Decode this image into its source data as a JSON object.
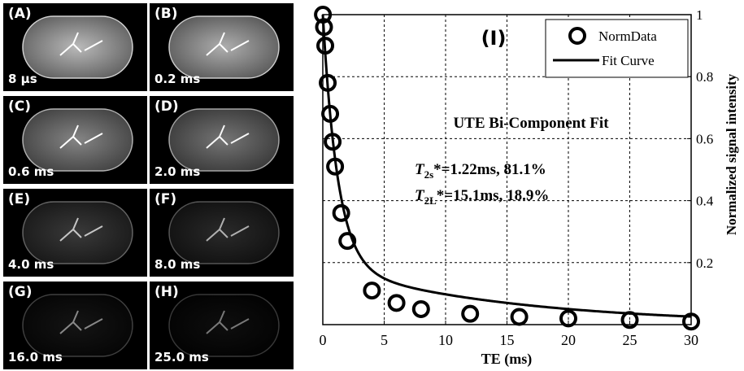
{
  "panels": [
    {
      "label": "(A)",
      "time": "8 μs",
      "brightness": 0.75
    },
    {
      "label": "(B)",
      "time": "0.2 ms",
      "brightness": 0.72
    },
    {
      "label": "(C)",
      "time": "0.6 ms",
      "brightness": 0.6
    },
    {
      "label": "(D)",
      "time": "2.0 ms",
      "brightness": 0.55
    },
    {
      "label": "(E)",
      "time": "4.0 ms",
      "brightness": 0.32
    },
    {
      "label": "(F)",
      "time": "8.0 ms",
      "brightness": 0.24
    },
    {
      "label": "(G)",
      "time": "16.0 ms",
      "brightness": 0.1
    },
    {
      "label": "(H)",
      "time": "25.0 ms",
      "brightness": 0.05
    }
  ],
  "chart_data": {
    "type": "scatter",
    "panel_label": "(I)",
    "xlabel": "TE (ms)",
    "ylabel": "Normalized signal intensity",
    "xlim": [
      0,
      30
    ],
    "ylim": [
      0,
      1
    ],
    "xticks": [
      0,
      5,
      10,
      15,
      20,
      25,
      30
    ],
    "yticks": [
      0.2,
      0.4,
      0.6,
      0.8,
      1
    ],
    "grid": true,
    "legend": {
      "placement": "top-right",
      "entries": [
        "NormData",
        "Fit Curve"
      ]
    },
    "annotation_title": "UTE Bi-Component Fit",
    "annotations": [
      {
        "symbol": "T",
        "sub": "2s",
        "text": "*=1.22ms,  81.1%"
      },
      {
        "symbol": "T",
        "sub": "2L",
        "text": "*=15.1ms, 18.9%"
      }
    ],
    "series": [
      {
        "name": "NormData",
        "x": [
          0.008,
          0.1,
          0.2,
          0.4,
          0.6,
          0.8,
          1.0,
          1.5,
          2.0,
          4.0,
          6.0,
          8.0,
          12.0,
          16.0,
          20.0,
          25.0,
          30.0
        ],
        "y": [
          1.0,
          0.96,
          0.9,
          0.78,
          0.68,
          0.59,
          0.51,
          0.36,
          0.27,
          0.11,
          0.07,
          0.05,
          0.035,
          0.025,
          0.02,
          0.015,
          0.01
        ]
      },
      {
        "name": "Fit Curve",
        "model": "biexponential",
        "components": [
          {
            "t2": 1.22,
            "fraction": 0.811
          },
          {
            "t2": 15.1,
            "fraction": 0.189
          }
        ]
      }
    ]
  }
}
